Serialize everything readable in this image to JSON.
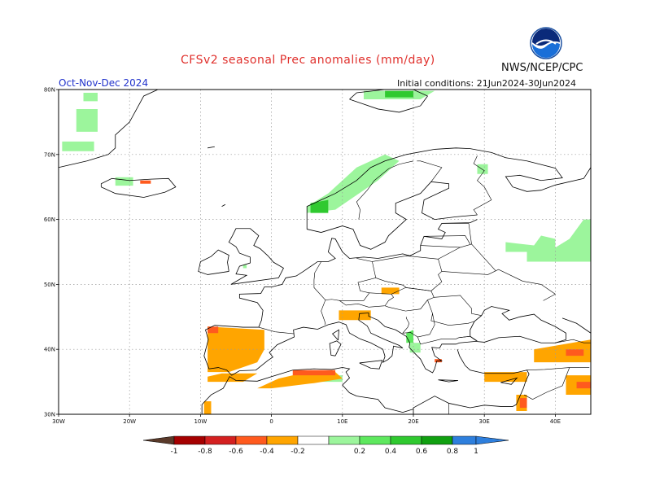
{
  "header": {
    "title": "CFSv2 seasonal Prec anomalies (mm/day)",
    "agency": "NWS/NCEP/CPC",
    "season": "Oct-Nov-Dec 2024",
    "initial_conditions": "Initial conditions: 21Jun2024-30Jun2024",
    "logo_text": "NOAA"
  },
  "map": {
    "lat_ticks": [
      "80N",
      "70N",
      "60N",
      "50N",
      "40N",
      "30N"
    ],
    "lon_ticks": [
      "30W",
      "20W",
      "10W",
      "0",
      "10E",
      "20E",
      "30E",
      "40E"
    ],
    "colors": {
      "frame": "#000000",
      "grid": "#9a9a9a",
      "coast": "#000000"
    }
  },
  "colorbar": {
    "labels": [
      "-1",
      "-0.8",
      "-0.6",
      "-0.4",
      "-0.2",
      "0.2",
      "0.4",
      "0.6",
      "0.8",
      "1"
    ],
    "colors": [
      "#5a3a2a",
      "#a50000",
      "#d42020",
      "#ff5a1e",
      "#ffa500",
      "#ffffff",
      "#9cf59c",
      "#5ee85e",
      "#2fc92f",
      "#10a010",
      "#2e7fdd"
    ]
  }
}
